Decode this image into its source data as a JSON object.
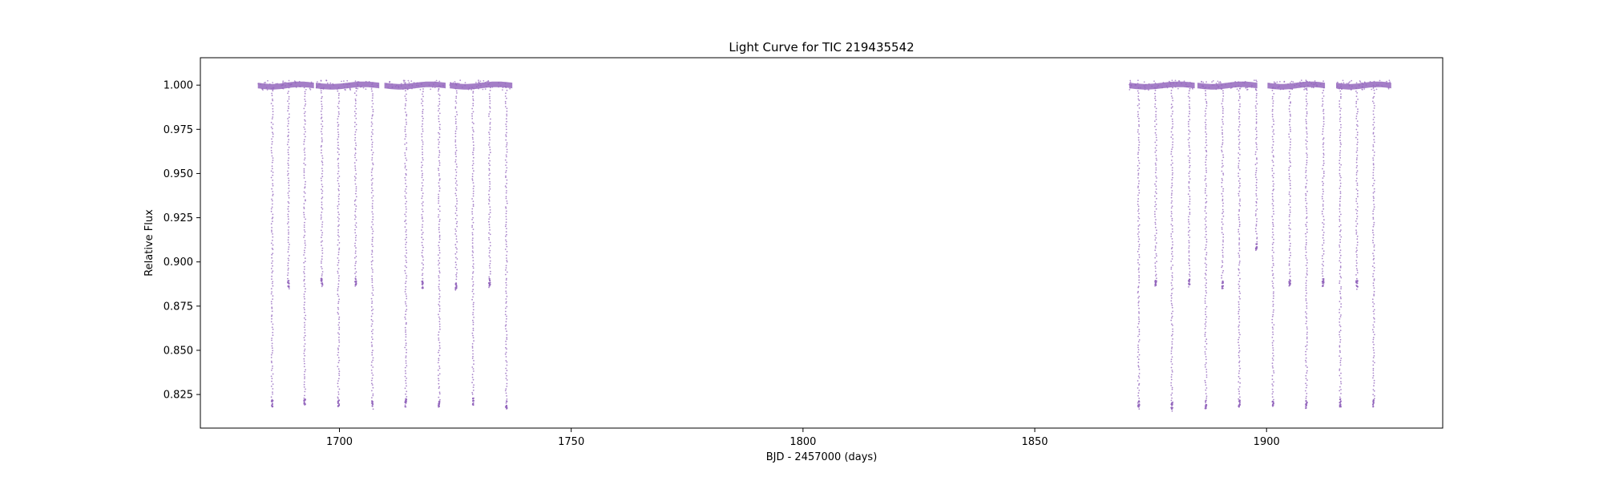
{
  "chart_data": {
    "type": "scatter",
    "title": "Light Curve for TIC 219435542",
    "xlabel": "BJD - 2457000 (days)",
    "ylabel": "Relative Flux",
    "xlim": [
      1670,
      1938
    ],
    "ylim": [
      0.806,
      1.0155
    ],
    "xticks": [
      1700,
      1750,
      1800,
      1850,
      1900
    ],
    "yticks": [
      0.825,
      0.85,
      0.875,
      0.9,
      0.925,
      0.95,
      0.975,
      1.0
    ],
    "grid": false,
    "legend": "none",
    "color": "#9467bd",
    "baseline_flux": 1.0,
    "series": [
      {
        "segments": [
          [
            1682.4,
            1694.5
          ],
          [
            1694.9,
            1708.6
          ],
          [
            1709.7,
            1722.9
          ],
          [
            1723.8,
            1737.3
          ],
          [
            1870.4,
            1884.5
          ],
          [
            1885.1,
            1898.0
          ],
          [
            1900.2,
            1912.6
          ],
          [
            1915.0,
            1926.9
          ]
        ],
        "dips_deep": [
          {
            "x": 1685.5,
            "y": 0.818
          },
          {
            "x": 1692.5,
            "y": 0.819
          },
          {
            "x": 1699.8,
            "y": 0.818
          },
          {
            "x": 1707.1,
            "y": 0.817
          },
          {
            "x": 1714.3,
            "y": 0.818
          },
          {
            "x": 1721.5,
            "y": 0.818
          },
          {
            "x": 1728.8,
            "y": 0.819
          },
          {
            "x": 1736.0,
            "y": 0.817
          },
          {
            "x": 1872.4,
            "y": 0.817
          },
          {
            "x": 1879.6,
            "y": 0.816
          },
          {
            "x": 1886.9,
            "y": 0.817
          },
          {
            "x": 1894.1,
            "y": 0.818
          },
          {
            "x": 1901.4,
            "y": 0.818
          },
          {
            "x": 1908.6,
            "y": 0.817
          },
          {
            "x": 1915.9,
            "y": 0.818
          },
          {
            "x": 1923.1,
            "y": 0.818
          }
        ],
        "dips_shallow": [
          {
            "x": 1689.0,
            "y": 0.885
          },
          {
            "x": 1696.2,
            "y": 0.886
          },
          {
            "x": 1703.5,
            "y": 0.886
          },
          {
            "x": 1717.9,
            "y": 0.885
          },
          {
            "x": 1725.2,
            "y": 0.884
          },
          {
            "x": 1732.4,
            "y": 0.886
          },
          {
            "x": 1876.1,
            "y": 0.886
          },
          {
            "x": 1883.3,
            "y": 0.886
          },
          {
            "x": 1890.5,
            "y": 0.885
          },
          {
            "x": 1897.8,
            "y": 0.907
          },
          {
            "x": 1905.0,
            "y": 0.886
          },
          {
            "x": 1912.2,
            "y": 0.886
          },
          {
            "x": 1919.5,
            "y": 0.885
          }
        ]
      }
    ]
  }
}
